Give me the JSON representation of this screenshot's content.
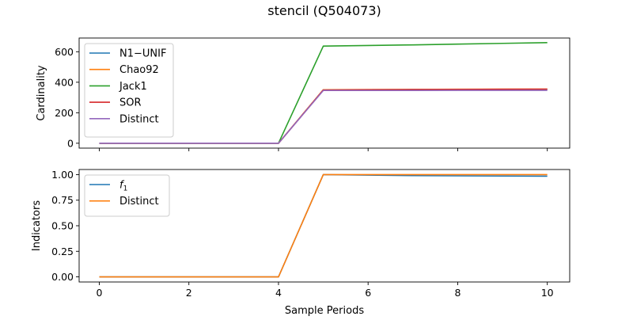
{
  "figure_title": "stencil (Q504073)",
  "chart_data": [
    {
      "type": "line",
      "title": "",
      "xlabel": "",
      "ylabel": "Cardinality",
      "x": [
        0,
        1,
        2,
        3,
        4,
        5,
        6,
        7,
        8,
        9,
        10
      ],
      "xlim": [
        -0.45,
        10.5
      ],
      "ylim": [
        -32,
        690
      ],
      "xticks": [
        0,
        2,
        4,
        6,
        8,
        10
      ],
      "yticks": [
        0,
        200,
        400,
        600
      ],
      "show_xtick_labels": false,
      "grid": false,
      "legend_position": "upper-left",
      "series": [
        {
          "name": "N1−UNIF",
          "color": "#1f77b4",
          "values": [
            0,
            0,
            0,
            0,
            0,
            350,
            351,
            352,
            352,
            353,
            353
          ]
        },
        {
          "name": "Chao92",
          "color": "#ff7f0e",
          "values": [
            0,
            0,
            0,
            0,
            0,
            351,
            352,
            353,
            354,
            355,
            355
          ]
        },
        {
          "name": "Jack1",
          "color": "#2ca02c",
          "values": [
            0,
            0,
            0,
            0,
            0,
            637,
            641,
            645,
            650,
            655,
            660
          ]
        },
        {
          "name": "SOR",
          "color": "#d62728",
          "values": [
            0,
            0,
            0,
            0,
            0,
            349,
            351,
            352,
            353,
            354,
            355
          ]
        },
        {
          "name": "Distinct",
          "color": "#9467bd",
          "values": [
            0,
            0,
            0,
            0,
            0,
            346,
            346,
            346,
            347,
            347,
            347
          ]
        }
      ]
    },
    {
      "type": "line",
      "title": "",
      "xlabel": "Sample Periods",
      "ylabel": "Indicators",
      "x": [
        0,
        1,
        2,
        3,
        4,
        5,
        6,
        7,
        8,
        9,
        10
      ],
      "xlim": [
        -0.45,
        10.5
      ],
      "ylim": [
        -0.05,
        1.05
      ],
      "xticks": [
        0,
        2,
        4,
        6,
        8,
        10
      ],
      "yticks": [
        0.0,
        0.25,
        0.5,
        0.75,
        1.0
      ],
      "show_xtick_labels": true,
      "grid": false,
      "legend_position": "upper-left",
      "series": [
        {
          "name": "f1",
          "color": "#1f77b4",
          "values": [
            0,
            0,
            0,
            0,
            0,
            1.0,
            0.995,
            0.99,
            0.988,
            0.986,
            0.985
          ]
        },
        {
          "name": "Distinct",
          "color": "#ff7f0e",
          "values": [
            0,
            0,
            0,
            0,
            0,
            1.0,
            1.0,
            1.0,
            1.0,
            1.0,
            1.0
          ]
        }
      ]
    }
  ]
}
